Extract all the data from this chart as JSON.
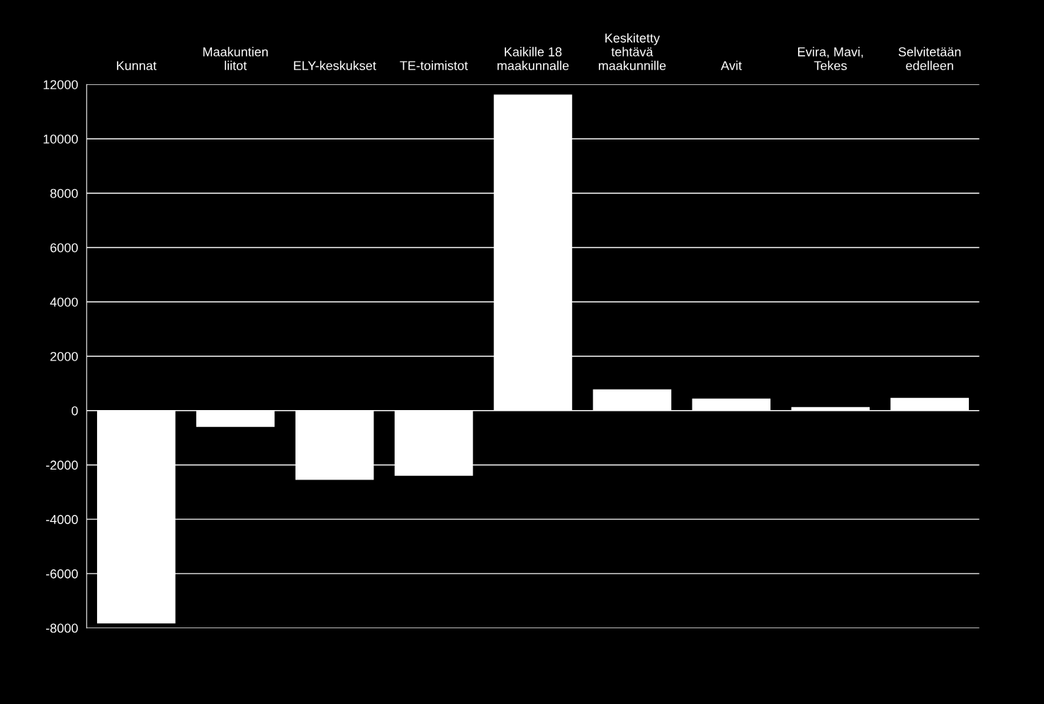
{
  "chart_data": {
    "type": "bar",
    "categories": [
      "Kunnat",
      "Maakuntien\nliitot",
      "ELY-keskukset",
      "TE-toimistot",
      "Kaikille 18\nmaakunnalle",
      "Keskitetty\ntehtävä\nmaakunnille",
      "Avit",
      "Evira, Mavi,\nTekes",
      "Selvitetään\nedelleen"
    ],
    "values": [
      -7830,
      -600,
      -2550,
      -2400,
      11630,
      780,
      440,
      130,
      470
    ],
    "color": "#ffffff",
    "ylim": [
      -8000,
      12000
    ],
    "yticks": [
      {
        "value": -8000,
        "label": "-8000"
      },
      {
        "value": -6000,
        "label": "-6000"
      },
      {
        "value": -4000,
        "label": "-4000"
      },
      {
        "value": -2000,
        "label": "-2000"
      },
      0,
      2000,
      4000,
      6000,
      8000,
      10000,
      12000
    ],
    "grid": "y"
  }
}
